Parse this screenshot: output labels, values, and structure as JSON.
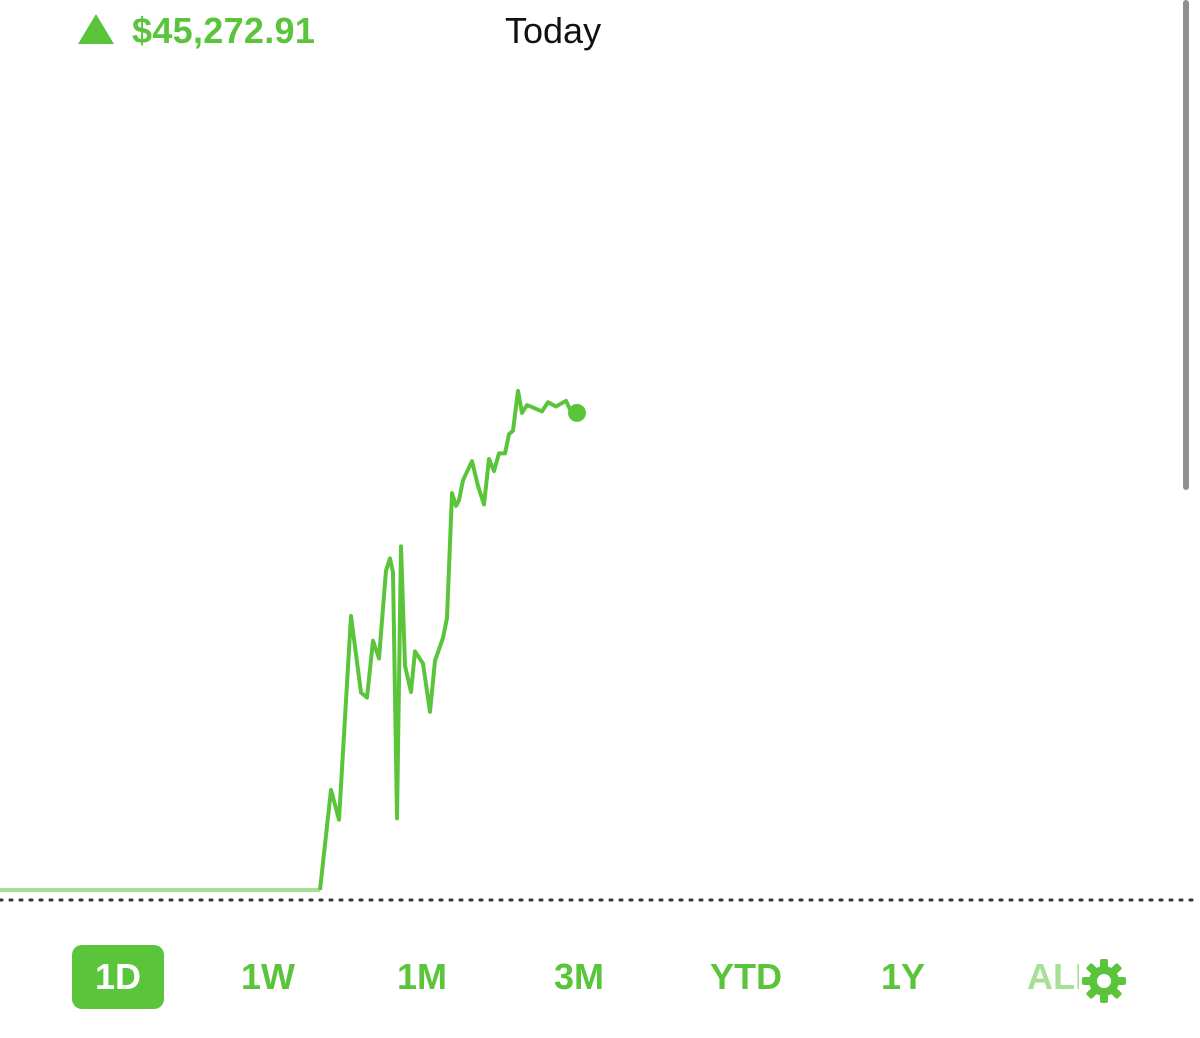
{
  "header": {
    "change_value": "$45,272.91",
    "change_direction_icon": "up-triangle-icon",
    "period_label": "Today"
  },
  "colors": {
    "accent": "#5ac53b",
    "accent_light": "#a6df96",
    "text": "#111111",
    "dotted_baseline": "#333333"
  },
  "range_selector": {
    "options": [
      "1D",
      "1W",
      "1M",
      "3M",
      "YTD",
      "1Y",
      "ALL"
    ],
    "selected": "1D",
    "settings_icon": "gear-icon"
  },
  "chart_data": {
    "type": "line",
    "title": "",
    "xlabel": "",
    "ylabel": "",
    "axes_shown": false,
    "grid": false,
    "baseline": "dotted horizontal reference line at previous close (y = 0)",
    "current_point_marker": true,
    "x_domain": [
      0,
      1200
    ],
    "y_domain": [
      0,
      100
    ],
    "series": [
      {
        "values": [
          [
            0,
            0
          ],
          [
            320,
            0
          ],
          [
            331,
            14.1
          ],
          [
            339,
            9.9
          ],
          [
            351,
            38.6
          ],
          [
            361,
            27.8
          ],
          [
            367,
            27.1
          ],
          [
            373,
            35.1
          ],
          [
            379,
            32.6
          ],
          [
            386,
            45.0
          ],
          [
            390,
            46.7
          ],
          [
            393,
            44.7
          ],
          [
            397,
            10.1
          ],
          [
            401,
            48.4
          ],
          [
            405,
            31.6
          ],
          [
            411,
            27.9
          ],
          [
            415,
            33.6
          ],
          [
            423,
            31.9
          ],
          [
            430,
            25.1
          ],
          [
            435,
            32.3
          ],
          [
            443,
            35.5
          ],
          [
            447,
            38.3
          ],
          [
            452,
            55.9
          ],
          [
            456,
            54.1
          ],
          [
            459,
            54.9
          ],
          [
            463,
            57.7
          ],
          [
            472,
            60.4
          ],
          [
            478,
            56.9
          ],
          [
            484,
            54.3
          ],
          [
            489,
            60.7
          ],
          [
            494,
            59.0
          ],
          [
            499,
            61.5
          ],
          [
            505,
            61.5
          ],
          [
            509,
            64.2
          ],
          [
            513,
            64.7
          ],
          [
            518,
            70.3
          ],
          [
            522,
            67.2
          ],
          [
            527,
            68.3
          ],
          [
            534,
            67.9
          ],
          [
            542,
            67.4
          ],
          [
            548,
            68.7
          ],
          [
            556,
            68.1
          ],
          [
            566,
            68.9
          ],
          [
            572,
            67.1
          ],
          [
            577,
            67.2
          ]
        ]
      }
    ]
  }
}
